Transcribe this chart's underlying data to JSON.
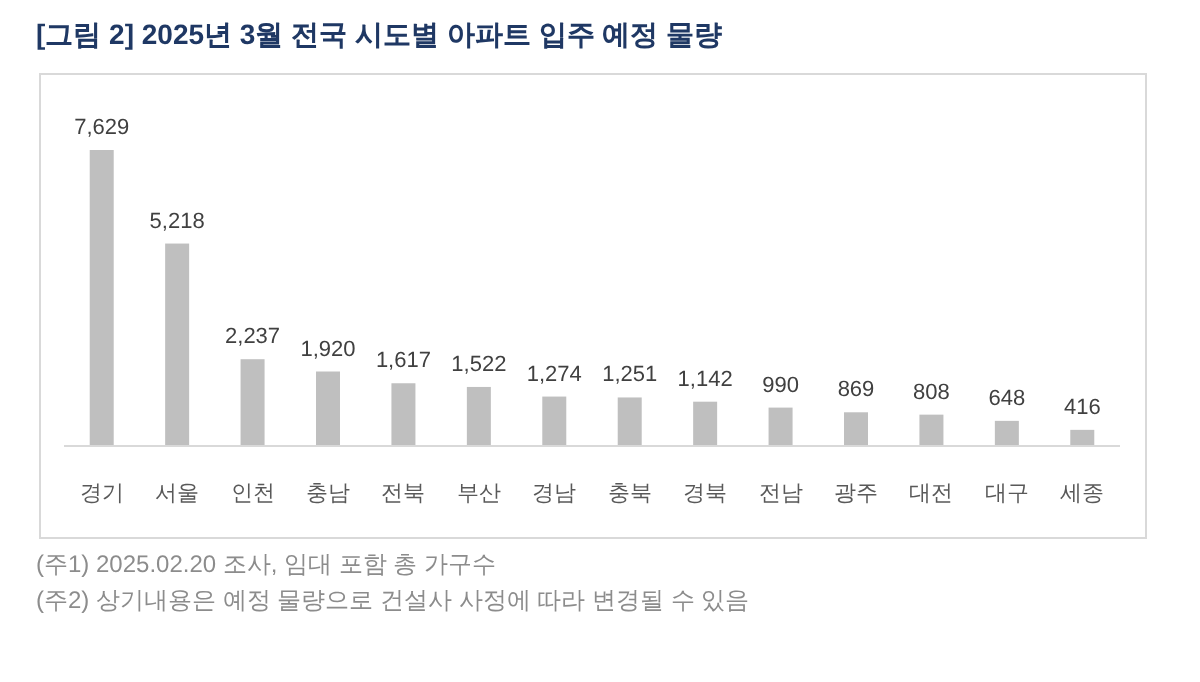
{
  "chart_data": {
    "type": "bar",
    "title": "[그림 2] 2025년 3월 전국 시도별 아파트 입주 예정 물량",
    "categories": [
      "경기",
      "서울",
      "인천",
      "충남",
      "전북",
      "부산",
      "경남",
      "충북",
      "경북",
      "전남",
      "광주",
      "대전",
      "대구",
      "세종"
    ],
    "values": [
      7629,
      5218,
      2237,
      1920,
      1617,
      1522,
      1274,
      1251,
      1142,
      990,
      869,
      808,
      648,
      416
    ],
    "value_labels": [
      "7,629",
      "5,218",
      "2,237",
      "1,920",
      "1,617",
      "1,522",
      "1,274",
      "1,251",
      "1,142",
      "990",
      "869",
      "808",
      "648",
      "416"
    ],
    "color": "#bfbfbf",
    "annotations": [
      "(주1) 2025.02.20 조사, 임대 포함 총 가구수",
      "(주2) 상기내용은 예정 물량으로 건설사 사정에 따라 변경될 수 있음"
    ]
  }
}
